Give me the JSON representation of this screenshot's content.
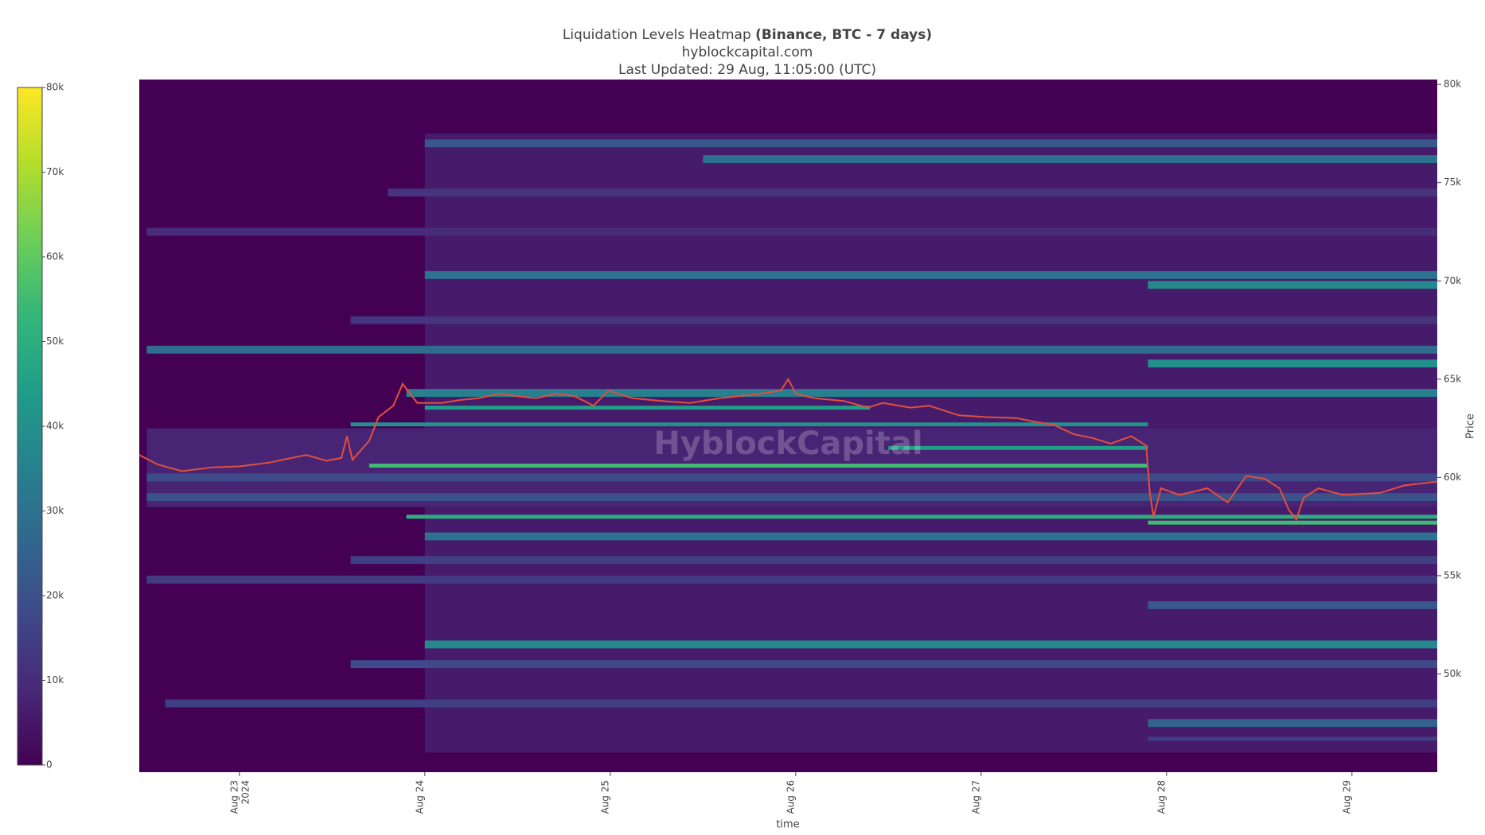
{
  "chart_data": {
    "type": "heatmap",
    "title": "Liquidation Levels Heatmap",
    "title_bold": "(Binance, BTC - 7 days)",
    "subtitle": "hyblockcapital.com",
    "updated": "Last Updated: 29 Aug, 11:05:00 (UTC)",
    "watermark": "HyblockCapital",
    "x_label": "time",
    "y_label": "Price",
    "x_year": "2024",
    "xlim": [
      22.46,
      29.46
    ],
    "xticks": [
      {
        "value": 23,
        "label": "Aug 23"
      },
      {
        "value": 24,
        "label": "Aug 24"
      },
      {
        "value": 25,
        "label": "Aug 25"
      },
      {
        "value": 26,
        "label": "Aug 26"
      },
      {
        "value": 27,
        "label": "Aug 27"
      },
      {
        "value": 28,
        "label": "Aug 28"
      },
      {
        "value": 29,
        "label": "Aug 29"
      }
    ],
    "ylim": [
      45000,
      80250
    ],
    "yticks": [
      {
        "value": 50000,
        "label": "50k"
      },
      {
        "value": 55000,
        "label": "55k"
      },
      {
        "value": 60000,
        "label": "60k"
      },
      {
        "value": 65000,
        "label": "65k"
      },
      {
        "value": 70000,
        "label": "70k"
      },
      {
        "value": 75000,
        "label": "75k"
      },
      {
        "value": 80000,
        "label": "80k"
      }
    ],
    "clim": [
      0,
      80000
    ],
    "cticks": [
      0,
      {
        "value": 10000,
        "label": "10k"
      },
      {
        "value": 20000,
        "label": "20k"
      },
      {
        "value": 30000,
        "label": "30k"
      },
      {
        "value": 40000,
        "label": "40k"
      },
      {
        "value": 50000,
        "label": "50k"
      },
      {
        "value": 60000,
        "label": "60k"
      },
      {
        "value": 70000,
        "label": "70k"
      },
      {
        "value": 80000,
        "label": "80k"
      }
    ],
    "colorscale": [
      "#440154",
      "#482878",
      "#3e4989",
      "#31688e",
      "#26828e",
      "#1f9e89",
      "#35b779",
      "#6ece58",
      "#b5de2b",
      "#fde725"
    ],
    "bands": [
      {
        "low": 46000,
        "high": 77500,
        "start": 24.0,
        "end": 29.46,
        "value": 6000
      },
      {
        "low": 58500,
        "high": 62500,
        "start": 22.5,
        "end": 29.46,
        "value": 8000
      },
      {
        "low": 76800,
        "high": 77200,
        "start": 24.0,
        "end": 29.46,
        "value": 22000
      },
      {
        "low": 76000,
        "high": 76400,
        "start": 25.5,
        "end": 29.46,
        "value": 30000
      },
      {
        "low": 74300,
        "high": 74700,
        "start": 23.8,
        "end": 29.46,
        "value": 12000
      },
      {
        "low": 72300,
        "high": 72700,
        "start": 22.5,
        "end": 29.46,
        "value": 10000
      },
      {
        "low": 70100,
        "high": 70500,
        "start": 24.0,
        "end": 29.46,
        "value": 30000
      },
      {
        "low": 69600,
        "high": 70000,
        "start": 27.9,
        "end": 29.46,
        "value": 38000
      },
      {
        "low": 67800,
        "high": 68200,
        "start": 23.6,
        "end": 29.46,
        "value": 12000
      },
      {
        "low": 66300,
        "high": 66700,
        "start": 22.5,
        "end": 29.46,
        "value": 28000
      },
      {
        "low": 65600,
        "high": 66000,
        "start": 27.9,
        "end": 29.46,
        "value": 40000
      },
      {
        "low": 64100,
        "high": 64500,
        "start": 23.9,
        "end": 29.46,
        "value": 35000
      },
      {
        "low": 63450,
        "high": 63650,
        "start": 24.0,
        "end": 26.4,
        "value": 45000
      },
      {
        "low": 62600,
        "high": 62800,
        "start": 23.6,
        "end": 27.9,
        "value": 40000
      },
      {
        "low": 61400,
        "high": 61600,
        "start": 26.5,
        "end": 27.9,
        "value": 45000
      },
      {
        "low": 60500,
        "high": 60700,
        "start": 23.7,
        "end": 27.9,
        "value": 55000
      },
      {
        "low": 59800,
        "high": 60200,
        "start": 22.5,
        "end": 29.46,
        "value": 18000
      },
      {
        "low": 58800,
        "high": 59200,
        "start": 22.5,
        "end": 29.46,
        "value": 20000
      },
      {
        "low": 57900,
        "high": 58100,
        "start": 23.9,
        "end": 29.46,
        "value": 50000
      },
      {
        "low": 57600,
        "high": 57800,
        "start": 27.9,
        "end": 29.46,
        "value": 55000
      },
      {
        "low": 56800,
        "high": 57200,
        "start": 24.0,
        "end": 29.46,
        "value": 30000
      },
      {
        "low": 55600,
        "high": 56000,
        "start": 23.6,
        "end": 29.46,
        "value": 15000
      },
      {
        "low": 54600,
        "high": 55000,
        "start": 22.5,
        "end": 29.46,
        "value": 14000
      },
      {
        "low": 53300,
        "high": 53700,
        "start": 27.9,
        "end": 29.46,
        "value": 22000
      },
      {
        "low": 51300,
        "high": 51700,
        "start": 24.0,
        "end": 29.46,
        "value": 38000
      },
      {
        "low": 50300,
        "high": 50700,
        "start": 23.6,
        "end": 29.46,
        "value": 18000
      },
      {
        "low": 48300,
        "high": 48700,
        "start": 22.6,
        "end": 29.46,
        "value": 15000
      },
      {
        "low": 47300,
        "high": 47700,
        "start": 27.9,
        "end": 29.46,
        "value": 25000
      },
      {
        "low": 46600,
        "high": 46800,
        "start": 27.9,
        "end": 29.46,
        "value": 15000
      }
    ],
    "price": {
      "color": "#e0503c",
      "x": [
        22.46,
        22.56,
        22.69,
        22.85,
        23.0,
        23.16,
        23.26,
        23.36,
        23.47,
        23.55,
        23.58,
        23.61,
        23.7,
        23.75,
        23.83,
        23.88,
        23.92,
        23.96,
        24.09,
        24.19,
        24.29,
        24.4,
        24.5,
        24.6,
        24.71,
        24.81,
        24.91,
        24.99,
        25.12,
        25.28,
        25.43,
        25.59,
        25.79,
        25.92,
        25.96,
        26.0,
        26.1,
        26.26,
        26.39,
        26.47,
        26.62,
        26.72,
        26.88,
        27.03,
        27.19,
        27.29,
        27.39,
        27.5,
        27.6,
        27.7,
        27.81,
        27.89,
        27.91,
        27.93,
        27.97,
        28.07,
        28.22,
        28.33,
        28.43,
        28.53,
        28.61,
        28.66,
        28.7,
        28.74,
        28.82,
        28.95,
        29.15,
        29.28,
        29.46
      ],
      "values": [
        61140,
        60660,
        60320,
        60510,
        60560,
        60750,
        60950,
        61140,
        60850,
        60990,
        62100,
        60900,
        61860,
        63070,
        63650,
        64760,
        64270,
        63790,
        63790,
        63940,
        64030,
        64270,
        64130,
        64030,
        64270,
        64130,
        63650,
        64420,
        64030,
        63890,
        63790,
        64030,
        64230,
        64420,
        65000,
        64270,
        64030,
        63890,
        63550,
        63790,
        63550,
        63650,
        63160,
        63070,
        63020,
        62830,
        62680,
        62200,
        62010,
        61720,
        62100,
        61620,
        59210,
        58000,
        59450,
        59110,
        59450,
        58730,
        60080,
        59930,
        59450,
        58340,
        57860,
        58970,
        59450,
        59110,
        59210,
        59590,
        59790
      ]
    }
  }
}
